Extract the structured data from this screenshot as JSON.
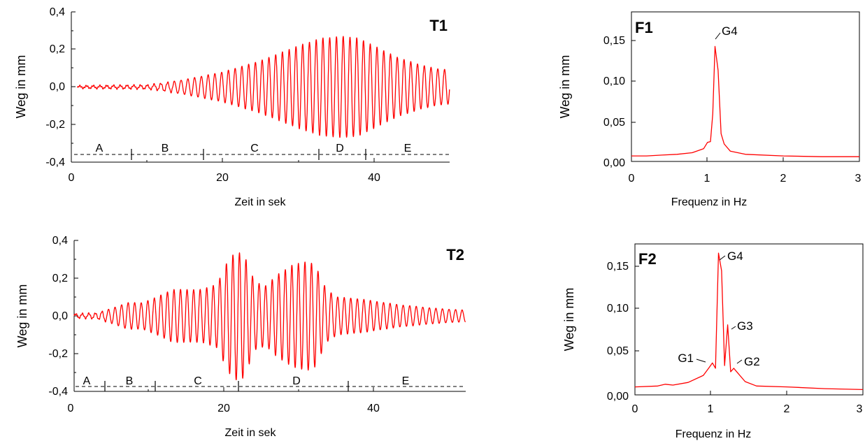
{
  "chart_data": [
    {
      "id": "T1",
      "type": "line",
      "label": "T1",
      "xlabel": "Zeit in sek",
      "ylabel": "Weg in mm",
      "xlim": [
        0,
        50
      ],
      "ylim": [
        -0.4,
        0.4
      ],
      "xticks": [
        "0",
        "20",
        "40"
      ],
      "yticks": [
        "0,4",
        "0,2",
        "0,0",
        "-0,2",
        "-0,4"
      ],
      "signal": {
        "frequency_hz": 1.12,
        "sample_times": [
          0.8,
          5,
          10,
          12,
          15,
          20,
          25,
          30,
          33,
          36,
          38,
          40,
          43,
          46,
          48,
          50
        ],
        "amplitude_mm": [
          0.006,
          0.008,
          0.01,
          0.02,
          0.04,
          0.08,
          0.14,
          0.22,
          0.26,
          0.27,
          0.26,
          0.22,
          0.16,
          0.12,
          0.1,
          0.09
        ]
      },
      "phases": {
        "y": -0.37,
        "labels": [
          "A",
          "B",
          "C",
          "D",
          "E"
        ],
        "label_x": [
          3.7,
          12.4,
          24.2,
          35.5,
          44.5
        ],
        "boundaries": [
          8,
          17.5,
          32.8,
          39
        ]
      }
    },
    {
      "id": "F1",
      "type": "line",
      "label": "F1",
      "xlabel": "Frequenz in Hz",
      "ylabel": "Weg in mm",
      "xlim": [
        0,
        3
      ],
      "ylim": [
        0,
        0.2
      ],
      "xticks": [
        "0",
        "1",
        "2",
        "3"
      ],
      "yticks": [
        "0,15",
        "0,10",
        "0,05",
        "0,00"
      ],
      "x": [
        0,
        0.2,
        0.4,
        0.6,
        0.8,
        0.95,
        1.0,
        1.04,
        1.07,
        1.1,
        1.14,
        1.18,
        1.22,
        1.3,
        1.5,
        2.0,
        2.5,
        3.0
      ],
      "y": [
        0.007,
        0.007,
        0.008,
        0.009,
        0.011,
        0.016,
        0.024,
        0.025,
        0.06,
        0.145,
        0.115,
        0.035,
        0.022,
        0.013,
        0.009,
        0.007,
        0.006,
        0.006
      ],
      "annotations": [
        {
          "text": "G4",
          "x": 1.1,
          "y": 0.145
        }
      ]
    },
    {
      "id": "T2",
      "type": "line",
      "label": "T2",
      "xlabel": "Zeit in sek",
      "ylabel": "Weg in mm",
      "xlim": [
        0,
        52
      ],
      "ylim": [
        -0.4,
        0.4
      ],
      "xticks": [
        "0",
        "20",
        "40"
      ],
      "yticks": [
        "0,4",
        "0,2",
        "0,0",
        "-0,2",
        "-0,4"
      ],
      "signal": {
        "frequency_hz": 1.15,
        "sample_times": [
          0,
          3,
          5,
          7,
          9,
          11,
          13,
          17,
          19,
          20.5,
          21.5,
          22.5,
          24,
          25.5,
          27,
          29,
          31,
          32,
          33.5,
          35,
          38,
          43,
          48,
          52
        ],
        "amplitude_mm": [
          0.01,
          0.015,
          0.04,
          0.07,
          0.07,
          0.1,
          0.14,
          0.14,
          0.17,
          0.3,
          0.34,
          0.33,
          0.18,
          0.16,
          0.22,
          0.27,
          0.29,
          0.27,
          0.14,
          0.1,
          0.09,
          0.06,
          0.04,
          0.03
        ]
      },
      "phases": {
        "y": -0.38,
        "labels": [
          "A",
          "B",
          "C",
          "D",
          "E"
        ],
        "label_x": [
          2.5,
          8.7,
          19.5,
          30.2,
          44.3
        ],
        "boundaries": [
          4.5,
          11,
          22.3,
          36.8
        ]
      }
    },
    {
      "id": "F2",
      "type": "line",
      "label": "F2",
      "xlabel": "Frequenz in Hz",
      "ylabel": "Weg in mm",
      "xlim": [
        0,
        3
      ],
      "ylim": [
        0,
        0.19
      ],
      "xticks": [
        "0",
        "1",
        "2",
        "3"
      ],
      "yticks": [
        "0,15",
        "0,10",
        "0,05",
        "0,00"
      ],
      "x": [
        0,
        0.3,
        0.4,
        0.5,
        0.7,
        0.9,
        0.97,
        1.02,
        1.06,
        1.1,
        1.14,
        1.18,
        1.22,
        1.26,
        1.3,
        1.35,
        1.45,
        1.6,
        2.0,
        2.5,
        3.0
      ],
      "y": [
        0.009,
        0.01,
        0.012,
        0.011,
        0.014,
        0.022,
        0.03,
        0.036,
        0.03,
        0.16,
        0.14,
        0.033,
        0.079,
        0.026,
        0.03,
        0.025,
        0.015,
        0.01,
        0.009,
        0.007,
        0.006
      ],
      "annotations": [
        {
          "text": "G4",
          "x": 1.1,
          "y": 0.16
        },
        {
          "text": "G3",
          "x": 1.22,
          "y": 0.079
        },
        {
          "text": "G1",
          "x": 1.0,
          "y": 0.036
        },
        {
          "text": "G2",
          "x": 1.3,
          "y": 0.03
        }
      ]
    }
  ]
}
